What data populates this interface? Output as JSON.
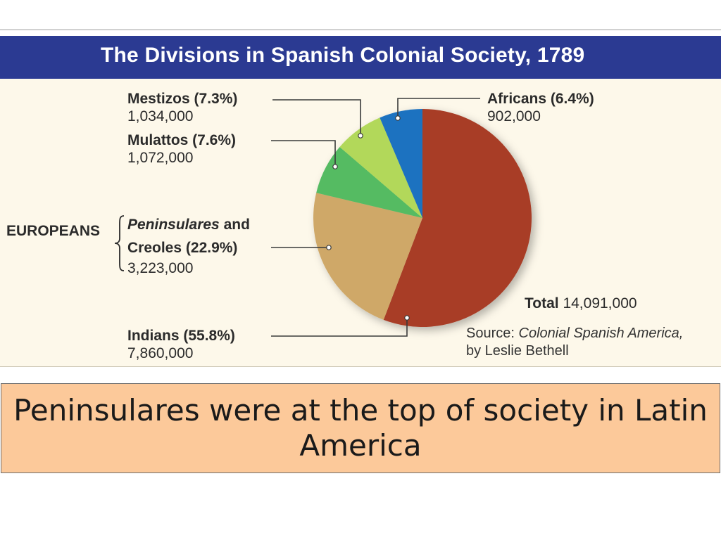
{
  "chart_data": {
    "type": "pie",
    "title": "The Divisions in Spanish Colonial Society, 1789",
    "slices": [
      {
        "label": "Indians",
        "percent": 55.8,
        "value": 7860000,
        "color": "#a83c27",
        "pct_text": "(55.8%)",
        "value_text": "7,860,000"
      },
      {
        "label": "Peninsulares and Creoles",
        "percent": 22.9,
        "value": 3223000,
        "color": "#cfa868",
        "pct_text": "(22.9%)",
        "value_text": "3,223,000"
      },
      {
        "label": "Mulattos",
        "percent": 7.6,
        "value": 1072000,
        "color": "#55bb62",
        "pct_text": "(7.6%)",
        "value_text": "1,072,000"
      },
      {
        "label": "Mestizos",
        "percent": 7.3,
        "value": 1034000,
        "color": "#b2d85a",
        "pct_text": "(7.3%)",
        "value_text": "1,034,000"
      },
      {
        "label": "Africans",
        "percent": 6.4,
        "value": 902000,
        "color": "#1e72c0",
        "pct_text": "(6.4%)",
        "value_text": "902,000"
      }
    ],
    "group_label": "EUROPEANS",
    "peninsulares_text": "Peninsulares",
    "and_text": "and",
    "creoles_text": "Creoles",
    "total_label": "Total",
    "total_value": "14,091,000",
    "source_prefix": "Source:",
    "source_title": "Colonial Spanish America,",
    "source_author": "by Leslie Bethell"
  },
  "caption": "Peninsulares were at the top of society in Latin America"
}
